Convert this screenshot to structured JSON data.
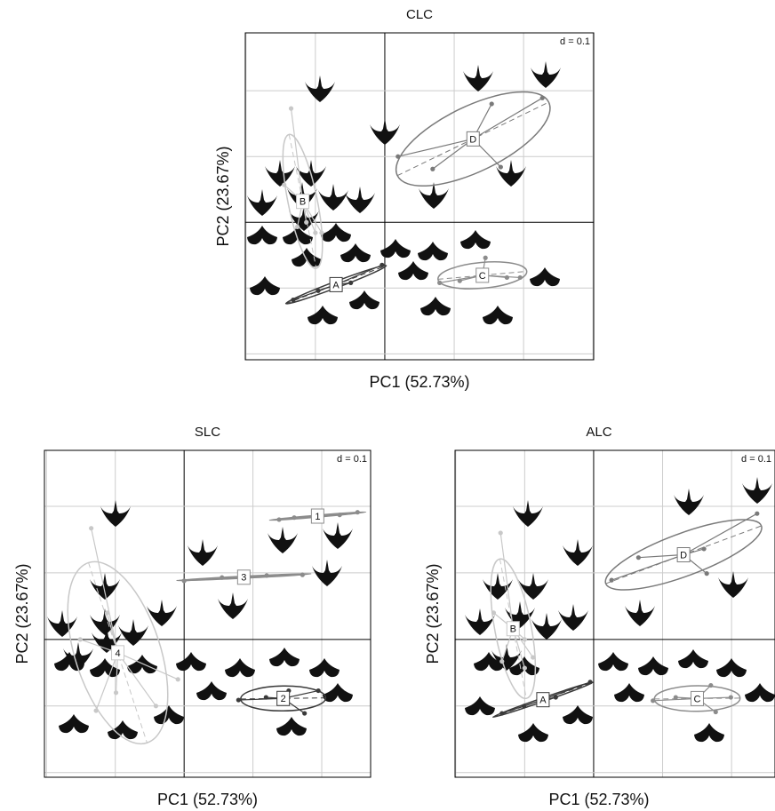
{
  "chart_data": [
    {
      "type": "scatter",
      "title": "CLC",
      "x_label": "PC1 (52.73%)",
      "y_label": "PC2 (23.67%)",
      "annotation": "d = 0.1",
      "xlim": [
        -0.201,
        0.301
      ],
      "ylim": [
        -0.209,
        0.288
      ],
      "xgrid": [
        -0.2,
        -0.1,
        0,
        0.1,
        0.2,
        0.3
      ],
      "ygrid": [
        -0.2,
        -0.1,
        0,
        0.1,
        0.2
      ],
      "series": [
        {
          "name": "B",
          "color": "#c8c8c8",
          "x": [
            -0.135,
            -0.145,
            -0.126,
            -0.1,
            -0.091,
            -0.113
          ],
          "y": [
            0.173,
            0.057,
            -0.007,
            -0.016,
            -0.016,
            0
          ]
        },
        {
          "name": "D",
          "color": "#7a7a7a",
          "x": [
            0.019,
            0.069,
            0.154,
            0.227,
            0.167
          ],
          "y": [
            0.1,
            0.081,
            0.18,
            0.189,
            0.084
          ]
        },
        {
          "name": "C",
          "color": "#8c8c8c",
          "x": [
            0.079,
            0.108,
            0.145,
            0.176,
            0.195
          ],
          "y": [
            -0.092,
            -0.089,
            -0.054,
            -0.084,
            -0.084
          ]
        },
        {
          "name": "A",
          "color": "#3a3a3a",
          "x": [
            -0.132,
            -0.096,
            -0.049,
            -0.004
          ],
          "y": [
            -0.118,
            -0.104,
            -0.092,
            -0.065
          ]
        }
      ]
    },
    {
      "type": "scatter",
      "title": "SLC",
      "x_label": "PC1 (52.73%)",
      "y_label": "PC2 (23.67%)",
      "annotation": "d = 0.1",
      "xlim": [
        -0.203,
        0.271
      ],
      "ylim": [
        -0.207,
        0.284
      ],
      "xgrid": [
        -0.2,
        -0.1,
        0,
        0.1,
        0.2
      ],
      "ygrid": [
        -0.2,
        -0.1,
        0,
        0.1,
        0.2
      ],
      "series": [
        {
          "name": "4",
          "color": "#c8c8c8",
          "x": [
            -0.135,
            -0.112,
            -0.128,
            -0.041,
            -0.009,
            -0.099,
            -0.151
          ],
          "y": [
            0.167,
            0.04,
            -0.107,
            -0.1,
            -0.06,
            -0.08,
            0
          ]
        },
        {
          "name": "1",
          "color": "#8c8c8c",
          "x": [
            0.138,
            0.16,
            0.226,
            0.252
          ],
          "y": [
            0.18,
            0.183,
            0.187,
            0.191
          ]
        },
        {
          "name": "3",
          "color": "#8c8c8c",
          "x": [
            0,
            0.055,
            0.12,
            0.172
          ],
          "y": [
            0.088,
            0.093,
            0.096,
            0.097
          ]
        },
        {
          "name": "2",
          "color": "#3a3a3a",
          "x": [
            0.079,
            0.119,
            0.152,
            0.175,
            0.195
          ],
          "y": [
            -0.091,
            -0.087,
            -0.077,
            -0.111,
            -0.077
          ]
        }
      ]
    },
    {
      "type": "scatter",
      "title": "ALC",
      "x_label": "PC1 (52.73%)",
      "y_label": "PC2 (23.67%)",
      "annotation": "d = 0.1",
      "xlim": [
        -0.201,
        0.263
      ],
      "ylim": [
        -0.207,
        0.284
      ],
      "xgrid": [
        -0.2,
        -0.1,
        0,
        0.1,
        0.2
      ],
      "ygrid": [
        -0.2,
        -0.1,
        0,
        0.1,
        0.2
      ],
      "series": [
        {
          "name": "B",
          "color": "#c8c8c8",
          "x": [
            -0.135,
            -0.145,
            -0.133,
            -0.1,
            -0.088,
            -0.1
          ],
          "y": [
            0.16,
            0.04,
            -0.033,
            -0.043,
            -0.027,
            0
          ]
        },
        {
          "name": "D",
          "color": "#7a7a7a",
          "x": [
            0.026,
            0.065,
            0.16,
            0.237,
            0.164
          ],
          "y": [
            0.089,
            0.123,
            0.136,
            0.189,
            0.099
          ]
        },
        {
          "name": "C",
          "color": "#8c8c8c",
          "x": [
            0.086,
            0.119,
            0.17,
            0.199,
            0.177
          ],
          "y": [
            -0.092,
            -0.087,
            -0.069,
            -0.087,
            -0.109
          ]
        },
        {
          "name": "A",
          "color": "#3a3a3a",
          "x": [
            -0.133,
            -0.101,
            -0.055,
            -0.005
          ],
          "y": [
            -0.111,
            -0.1,
            -0.087,
            -0.064
          ]
        }
      ]
    }
  ]
}
